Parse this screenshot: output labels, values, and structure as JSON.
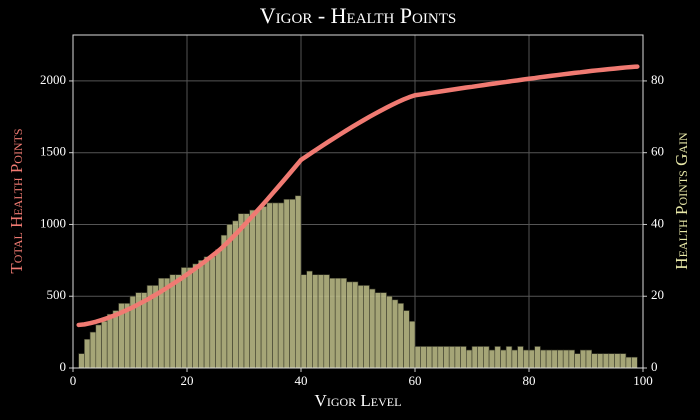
{
  "chart_data": {
    "type": "combo",
    "title": "Vigor - Health Points",
    "xlabel": "Vigor Level",
    "ylabel": "Total Health Points",
    "y2label": "Health Points Gain",
    "xlim": [
      0,
      100
    ],
    "xticks": [
      0,
      20,
      40,
      60,
      80,
      100
    ],
    "ylim": [
      0,
      2320
    ],
    "yticks": [
      0,
      500,
      1000,
      1500,
      2000
    ],
    "y2lim": [
      0,
      92.8
    ],
    "y2ticks": [
      0,
      20,
      40,
      60,
      80
    ],
    "grid": true,
    "series": [
      {
        "type": "bar",
        "axis": "y2",
        "color": "#c2c28c",
        "x": [
          2,
          3,
          4,
          5,
          6,
          7,
          8,
          9,
          10,
          11,
          12,
          13,
          14,
          15,
          16,
          17,
          18,
          19,
          20,
          21,
          22,
          23,
          24,
          25,
          26,
          27,
          28,
          29,
          30,
          31,
          32,
          33,
          34,
          35,
          36,
          37,
          38,
          39,
          40,
          41,
          42,
          43,
          44,
          45,
          46,
          47,
          48,
          49,
          50,
          51,
          52,
          53,
          54,
          55,
          56,
          57,
          58,
          59,
          60,
          61,
          62,
          63,
          64,
          65,
          66,
          67,
          68,
          69,
          70,
          71,
          72,
          73,
          74,
          75,
          76,
          77,
          78,
          79,
          80,
          81,
          82,
          83,
          84,
          85,
          86,
          87,
          88,
          89,
          90,
          91,
          92,
          93,
          94,
          95,
          96,
          97,
          98,
          99
        ],
        "values": [
          4,
          8,
          10,
          12,
          13,
          15,
          16,
          18,
          18,
          20,
          21,
          21,
          23,
          23,
          25,
          25,
          26,
          26,
          28,
          28,
          29,
          30,
          31,
          31,
          33,
          37,
          40,
          41,
          43,
          43,
          44,
          44,
          45,
          46,
          46,
          46,
          47,
          47,
          48,
          26,
          27,
          26,
          26,
          26,
          25,
          25,
          25,
          24,
          24,
          23,
          23,
          22,
          21,
          21,
          20,
          19,
          18,
          16,
          13,
          6,
          6,
          6,
          6,
          6,
          6,
          6,
          6,
          6,
          5,
          6,
          6,
          6,
          5,
          6,
          5,
          6,
          5,
          6,
          5,
          5,
          6,
          5,
          5,
          5,
          5,
          5,
          5,
          4,
          5,
          5,
          4,
          4,
          4,
          4,
          4,
          4,
          3,
          3
        ]
      },
      {
        "type": "line",
        "axis": "y",
        "color": "#f07a72",
        "x": [
          1,
          2,
          3,
          4,
          5,
          6,
          7,
          8,
          9,
          10,
          11,
          12,
          13,
          14,
          15,
          16,
          17,
          18,
          19,
          20,
          21,
          22,
          23,
          24,
          25,
          26,
          27,
          28,
          29,
          30,
          31,
          32,
          33,
          34,
          35,
          36,
          37,
          38,
          39,
          40,
          41,
          42,
          43,
          44,
          45,
          46,
          47,
          48,
          49,
          50,
          51,
          52,
          53,
          54,
          55,
          56,
          57,
          58,
          59,
          60,
          61,
          62,
          63,
          64,
          65,
          66,
          67,
          68,
          69,
          70,
          71,
          72,
          73,
          74,
          75,
          76,
          77,
          78,
          79,
          80,
          81,
          82,
          83,
          84,
          85,
          86,
          87,
          88,
          89,
          90,
          91,
          92,
          93,
          94,
          95,
          96,
          97,
          98,
          99
        ],
        "values": [
          300,
          304,
          312,
          322,
          334,
          347,
          362,
          378,
          396,
          414,
          434,
          455,
          476,
          499,
          522,
          547,
          572,
          598,
          624,
          652,
          680,
          709,
          738,
          769,
          800,
          833,
          870,
          910,
          951,
          994,
          1037,
          1081,
          1125,
          1170,
          1216,
          1262,
          1308,
          1355,
          1402,
          1450,
          1476,
          1503,
          1529,
          1555,
          1581,
          1606,
          1631,
          1656,
          1680,
          1704,
          1727,
          1750,
          1772,
          1793,
          1814,
          1834,
          1853,
          1871,
          1887,
          1900,
          1906,
          1912,
          1918,
          1924,
          1930,
          1936,
          1942,
          1948,
          1954,
          1959,
          1965,
          1971,
          1977,
          1982,
          1988,
          1993,
          1999,
          2004,
          2010,
          2015,
          2020,
          2026,
          2031,
          2036,
          2041,
          2046,
          2051,
          2056,
          2060,
          2065,
          2070,
          2074,
          2078,
          2082,
          2086,
          2090,
          2094,
          2097,
          2100
        ]
      }
    ]
  }
}
